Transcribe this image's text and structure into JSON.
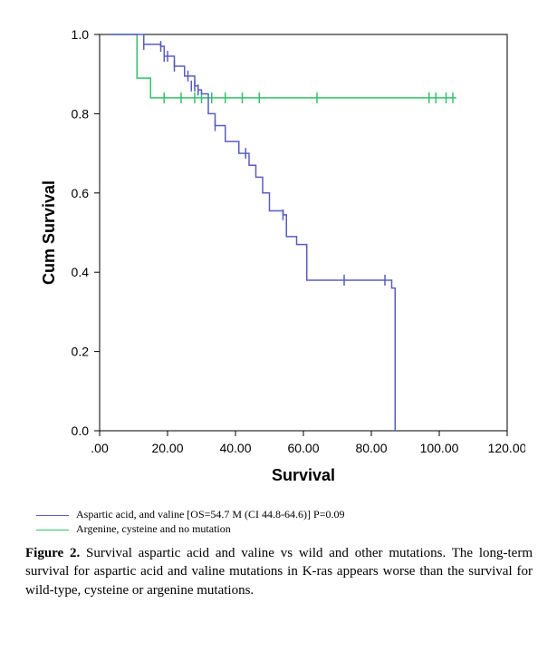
{
  "chart": {
    "type": "kaplan-meier",
    "background_color": "#ffffff",
    "panel_border_color": "#000000",
    "xlim": [
      0,
      120
    ],
    "ylim": [
      0,
      1
    ],
    "xticks": [
      0,
      20,
      40,
      60,
      80,
      100,
      120
    ],
    "xtick_labels": [
      ".00",
      "20.00",
      "40.00",
      "60.00",
      "80.00",
      "100.00",
      "120.00"
    ],
    "yticks": [
      0,
      0.2,
      0.4,
      0.6,
      0.8,
      1
    ],
    "ytick_labels": [
      "0.0",
      "0.2",
      "0.4",
      "0.6",
      "0.8",
      "1.0"
    ],
    "x_axis_label": "Survival",
    "y_axis_label": "Cum Survival",
    "tick_fontsize": 14,
    "axis_label_fontsize": 18,
    "line_width": 1.5,
    "censor_tick_len": 6,
    "series": {
      "aspartic_valine": {
        "color": "#5a5dbf",
        "steps": [
          [
            3,
            1.0
          ],
          [
            12,
            1.0
          ],
          [
            13,
            0.975
          ],
          [
            14,
            0.975
          ],
          [
            18,
            0.97
          ],
          [
            19,
            0.945
          ],
          [
            20,
            0.945
          ],
          [
            22,
            0.92
          ],
          [
            24,
            0.92
          ],
          [
            25,
            0.895
          ],
          [
            26,
            0.895
          ],
          [
            28,
            0.87
          ],
          [
            29,
            0.86
          ],
          [
            30,
            0.85
          ],
          [
            32,
            0.8
          ],
          [
            34,
            0.77
          ],
          [
            37,
            0.73
          ],
          [
            41,
            0.7
          ],
          [
            43,
            0.7
          ],
          [
            44,
            0.67
          ],
          [
            46,
            0.64
          ],
          [
            48,
            0.6
          ],
          [
            50,
            0.555
          ],
          [
            54,
            0.545
          ],
          [
            55,
            0.49
          ],
          [
            58,
            0.47
          ],
          [
            61,
            0.38
          ],
          [
            85,
            0.38
          ],
          [
            86,
            0.36
          ],
          [
            87,
            0.0
          ]
        ],
        "censors": [
          [
            13,
            0.975
          ],
          [
            18,
            0.97
          ],
          [
            19,
            0.945
          ],
          [
            20,
            0.945
          ],
          [
            22,
            0.92
          ],
          [
            26,
            0.895
          ],
          [
            27,
            0.87
          ],
          [
            28,
            0.87
          ],
          [
            29,
            0.86
          ],
          [
            34,
            0.77
          ],
          [
            43,
            0.7
          ],
          [
            54,
            0.545
          ],
          [
            72,
            0.38
          ],
          [
            84,
            0.38
          ]
        ]
      },
      "argenine_cysteine_wild": {
        "color": "#31c36a",
        "steps": [
          [
            3,
            1.0
          ],
          [
            10,
            1.0
          ],
          [
            11,
            0.89
          ],
          [
            14,
            0.89
          ],
          [
            15,
            0.84
          ],
          [
            105,
            0.84
          ]
        ],
        "censors": [
          [
            19,
            0.84
          ],
          [
            24,
            0.84
          ],
          [
            28,
            0.84
          ],
          [
            30,
            0.84
          ],
          [
            33,
            0.84
          ],
          [
            37,
            0.84
          ],
          [
            42,
            0.84
          ],
          [
            47,
            0.84
          ],
          [
            64,
            0.84
          ],
          [
            97,
            0.84
          ],
          [
            99,
            0.84
          ],
          [
            102,
            0.84
          ],
          [
            104,
            0.84
          ]
        ]
      }
    }
  },
  "legend": {
    "line1_label": "Aspartic acid, and valine [OS=54.7 M (CI 44.8-64.6)]   P=0.09",
    "line2_label": "Argenine, cysteine and no mutation"
  },
  "caption": {
    "title": "Figure 2.",
    "text_after_title": " Survival aspartic acid and valine vs wild and other mutations. The long-term survival for aspartic acid and valine mutations in K-ras appears worse than the survival for wild-type, cysteine or argenine mutations."
  }
}
